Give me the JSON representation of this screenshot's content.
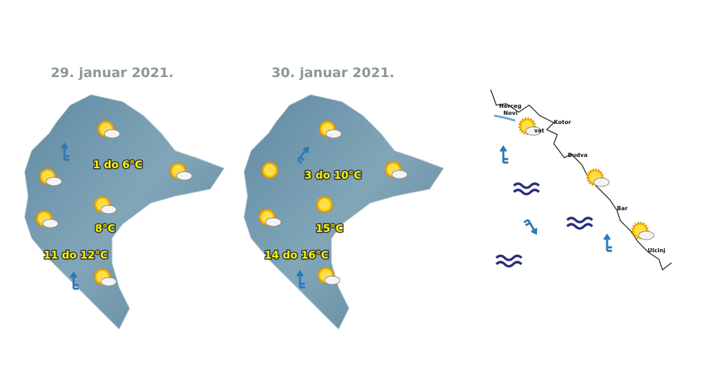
{
  "maps": [
    {
      "date": "29. januar 2021.",
      "temps": [
        "1 do 6°C",
        "8°C",
        "11 do 12°C"
      ]
    },
    {
      "date": "30. januar 2021.",
      "temps": [
        "3 do 10°C",
        "15°C",
        "14 do 16°C"
      ]
    }
  ],
  "coast": {
    "cities": [
      "Herceg",
      "Novi",
      "Kotor",
      "vat",
      "Budva",
      "Bar",
      "Ulcinj"
    ]
  }
}
